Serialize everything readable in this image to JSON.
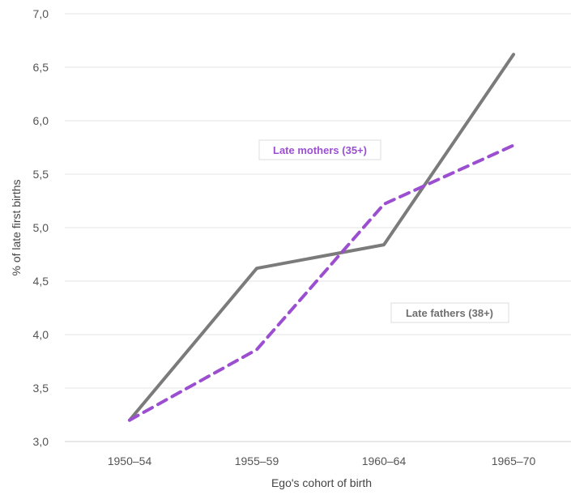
{
  "chart_data": {
    "type": "line",
    "categories": [
      "1950–54",
      "1955–59",
      "1960–64",
      "1965–70"
    ],
    "series": [
      {
        "name": "Late fathers (38+)",
        "values": [
          3.2,
          4.62,
          4.84,
          6.62
        ],
        "color": "#7b7b7b",
        "style": "solid"
      },
      {
        "name": "Late mothers (35+)",
        "values": [
          3.2,
          3.86,
          5.22,
          5.77
        ],
        "color": "#9b4fd0",
        "style": "dashed"
      }
    ],
    "xlabel": "Ego's cohort of birth",
    "ylabel": "% of late first births",
    "ylim": [
      3.0,
      7.0
    ],
    "yticks": [
      "3,0",
      "3,5",
      "4,0",
      "4,5",
      "5,0",
      "5,5",
      "6,0",
      "6,5",
      "7,0"
    ],
    "grid": true,
    "legend": "inline labels"
  }
}
